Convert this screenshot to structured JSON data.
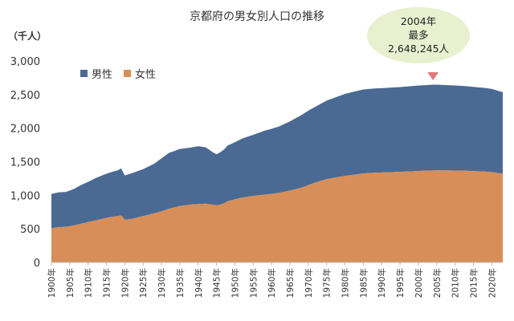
{
  "title": "京都府の男女別人口の推移",
  "y_unit": "（千人）",
  "legend": {
    "male": "男性",
    "female": "女性"
  },
  "annotation": {
    "line1": "2004年",
    "line2": "最多",
    "line3": "2,648,245人"
  },
  "colors": {
    "male": "#4a6a94",
    "female": "#d88e58",
    "bubble": "#e8f0cf",
    "pointer": "#e07a7a"
  },
  "chart_data": {
    "type": "area",
    "stacked": true,
    "title": "京都府の男女別人口の推移",
    "ylabel": "（千人）",
    "ylim": [
      0,
      3000
    ],
    "yticks": [
      "0",
      "500",
      "1,000",
      "1,500",
      "2,000",
      "2,500",
      "3,000"
    ],
    "xlim": [
      1900,
      2023
    ],
    "xticks": [
      "1900年",
      "1905年",
      "1910年",
      "1915年",
      "1920年",
      "1925年",
      "1930年",
      "1935年",
      "1940年",
      "1945年",
      "1950年",
      "1955年",
      "1960年",
      "1965年",
      "1970年",
      "1975年",
      "1980年",
      "1985年",
      "1990年",
      "1995年",
      "2000年",
      "2005年",
      "2010年",
      "2015年",
      "2020年"
    ],
    "legend_position": "top-left",
    "grid": false,
    "x": [
      1900,
      1902,
      1904,
      1906,
      1908,
      1910,
      1912,
      1914,
      1916,
      1918,
      1919,
      1920,
      1922,
      1925,
      1928,
      1930,
      1932,
      1935,
      1938,
      1940,
      1942,
      1944,
      1945,
      1946,
      1947,
      1948,
      1950,
      1952,
      1955,
      1958,
      1960,
      1962,
      1965,
      1968,
      1970,
      1972,
      1975,
      1978,
      1980,
      1983,
      1985,
      1988,
      1990,
      1993,
      1995,
      1998,
      2000,
      2004,
      2005,
      2008,
      2010,
      2013,
      2015,
      2018,
      2020,
      2023
    ],
    "series": [
      {
        "name": "女性",
        "values": [
          510,
          525,
          530,
          550,
          575,
          600,
          625,
          650,
          675,
          690,
          700,
          635,
          650,
          690,
          730,
          760,
          800,
          840,
          860,
          870,
          875,
          860,
          850,
          860,
          880,
          910,
          940,
          965,
          990,
          1010,
          1020,
          1035,
          1070,
          1110,
          1150,
          1190,
          1240,
          1270,
          1290,
          1310,
          1325,
          1335,
          1340,
          1345,
          1350,
          1355,
          1362,
          1370,
          1372,
          1370,
          1368,
          1365,
          1360,
          1355,
          1345,
          1320
        ]
      },
      {
        "name": "男性",
        "values": [
          510,
          520,
          520,
          540,
          575,
          600,
          630,
          650,
          665,
          680,
          700,
          660,
          680,
          700,
          740,
          790,
          830,
          850,
          850,
          860,
          840,
          780,
          760,
          780,
          800,
          830,
          850,
          880,
          910,
          950,
          970,
          990,
          1030,
          1080,
          1110,
          1130,
          1170,
          1200,
          1220,
          1240,
          1250,
          1255,
          1255,
          1260,
          1262,
          1270,
          1272,
          1278,
          1275,
          1270,
          1268,
          1260,
          1255,
          1245,
          1240,
          1215
        ]
      }
    ],
    "annotation": {
      "x": 2004,
      "text": [
        "2004年",
        "最多",
        "2,648,245人"
      ]
    }
  }
}
